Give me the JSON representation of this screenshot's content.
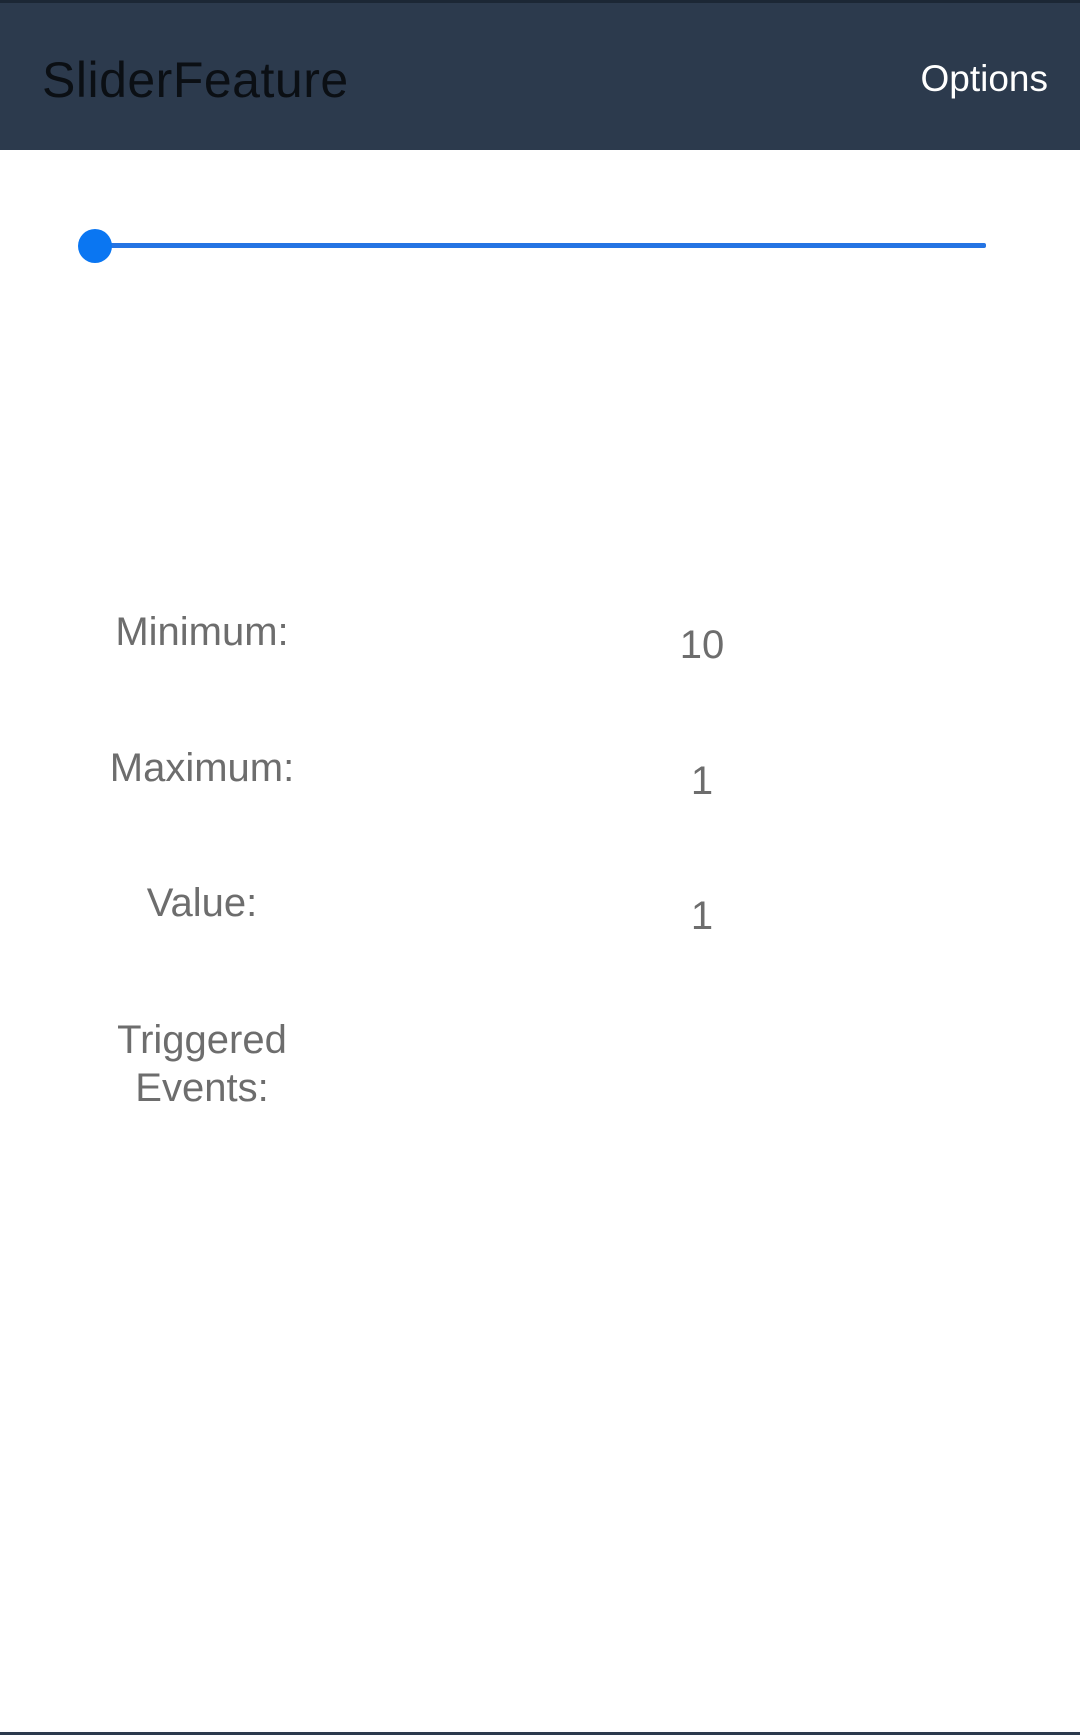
{
  "toolbar": {
    "title": "SliderFeature",
    "options_label": "Options"
  },
  "slider": {
    "minimum": 10,
    "maximum": 1,
    "value": 1,
    "position_fraction": 0,
    "accent_color": "#0a76f2"
  },
  "info": {
    "minimum_label": "Minimum:",
    "minimum_value": "10",
    "maximum_label": "Maximum:",
    "maximum_value": "1",
    "value_label": "Value:",
    "value_value": "1",
    "events_label_line1": "Triggered",
    "events_label_line2": "Events:",
    "events_value": ""
  }
}
